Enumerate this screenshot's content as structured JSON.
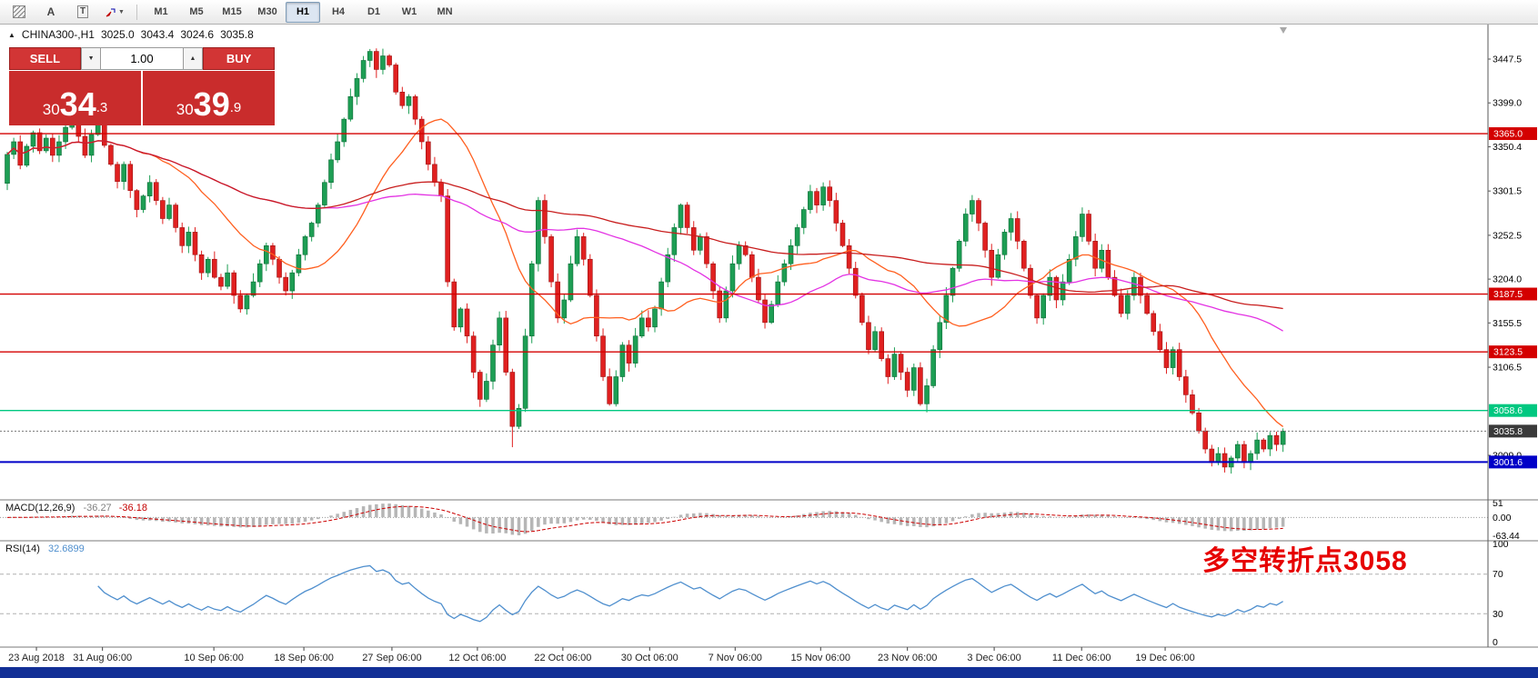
{
  "window": {
    "bottom_bar_color": "#122f96"
  },
  "toolbar": {
    "tools": [
      {
        "name": "hatch-tool"
      },
      {
        "name": "text-tool",
        "label": "A"
      },
      {
        "name": "text-label-tool",
        "label": "T"
      },
      {
        "name": "arrows-tool"
      }
    ],
    "timeframes": [
      {
        "label": "M1"
      },
      {
        "label": "M5"
      },
      {
        "label": "M15"
      },
      {
        "label": "M30"
      },
      {
        "label": "H1",
        "active": true
      },
      {
        "label": "H4"
      },
      {
        "label": "D1"
      },
      {
        "label": "W1"
      },
      {
        "label": "MN"
      }
    ]
  },
  "chart": {
    "symbol": "CHINA300-,H1",
    "open": "3025.0",
    "high": "3043.4",
    "low": "3024.6",
    "close": "3035.8"
  },
  "trade_panel": {
    "sell_label": "SELL",
    "buy_label": "BUY",
    "volume": "1.00",
    "bid": "3034.3",
    "ask": "3039.9"
  },
  "price_axis": {
    "ticks": [
      {
        "label": "3447.5",
        "value": 3447.5
      },
      {
        "label": "3399.0",
        "value": 3399.0
      },
      {
        "label": "3350.4",
        "value": 3350.4
      },
      {
        "label": "3301.5",
        "value": 3301.5
      },
      {
        "label": "3252.5",
        "value": 3252.5
      },
      {
        "label": "3204.0",
        "value": 3204.0
      },
      {
        "label": "3155.5",
        "value": 3155.5
      },
      {
        "label": "3106.5",
        "value": 3106.5
      },
      {
        "label": "3009.0",
        "value": 3009.0
      }
    ]
  },
  "levels": [
    {
      "label": "3365.0",
      "value": 3365.0,
      "color": "#d40000",
      "tag": "#d40000",
      "style": "solid",
      "width": 1.4
    },
    {
      "label": "3187.5",
      "value": 3187.5,
      "color": "#d40000",
      "tag": "#d40000",
      "style": "solid",
      "width": 1.4
    },
    {
      "label": "3123.5",
      "value": 3123.5,
      "color": "#d40000",
      "tag": "#d40000",
      "style": "solid",
      "width": 1.4
    },
    {
      "label": "3058.6",
      "value": 3058.6,
      "color": "#00c880",
      "tag": "#00c880",
      "style": "solid",
      "width": 1.4
    },
    {
      "label": "3035.8",
      "value": 3035.8,
      "color": "#777777",
      "tag": "#3a3a3a",
      "style": "dotted",
      "width": 1
    },
    {
      "label": "3001.6",
      "value": 3001.6,
      "color": "#0000c8",
      "tag": "#0000c8",
      "style": "solid",
      "width": 2
    }
  ],
  "annotation": {
    "text": "多空转折点3058",
    "color": "#e60000"
  },
  "chart_data": {
    "type": "candlestick",
    "symbol": "CHINA300-",
    "timeframe": "H1",
    "up_color": "#1d9e54",
    "down_color": "#e02020",
    "first_open": 3310,
    "closes": [
      3342,
      3356,
      3330,
      3351,
      3366,
      3346,
      3360,
      3341,
      3356,
      3372,
      3386,
      3362,
      3341,
      3364,
      3384,
      3352,
      3331,
      3312,
      3331,
      3302,
      3281,
      3296,
      3311,
      3291,
      3271,
      3286,
      3261,
      3241,
      3256,
      3231,
      3211,
      3226,
      3206,
      3196,
      3211,
      3186,
      3171,
      3186,
      3201,
      3221,
      3241,
      3226,
      3206,
      3191,
      3211,
      3231,
      3251,
      3266,
      3286,
      3311,
      3336,
      3356,
      3381,
      3406,
      3426,
      3446,
      3456,
      3436,
      3451,
      3441,
      3411,
      3396,
      3406,
      3381,
      3356,
      3331,
      3311,
      3296,
      3201,
      3151,
      3171,
      3141,
      3101,
      3071,
      3091,
      3131,
      3161,
      3101,
      3041,
      3061,
      3141,
      3221,
      3291,
      3251,
      3201,
      3161,
      3181,
      3221,
      3251,
      3226,
      3186,
      3141,
      3096,
      3066,
      3096,
      3131,
      3111,
      3141,
      3161,
      3151,
      3171,
      3201,
      3231,
      3261,
      3286,
      3261,
      3236,
      3251,
      3221,
      3191,
      3161,
      3191,
      3221,
      3241,
      3231,
      3206,
      3181,
      3156,
      3176,
      3201,
      3221,
      3241,
      3261,
      3281,
      3301,
      3286,
      3306,
      3291,
      3266,
      3241,
      3216,
      3186,
      3156,
      3126,
      3146,
      3116,
      3096,
      3121,
      3101,
      3081,
      3106,
      3066,
      3086,
      3126,
      3156,
      3186,
      3216,
      3246,
      3276,
      3291,
      3266,
      3236,
      3206,
      3231,
      3256,
      3271,
      3246,
      3216,
      3186,
      3161,
      3186,
      3206,
      3181,
      3201,
      3226,
      3251,
      3276,
      3246,
      3216,
      3236,
      3206,
      3186,
      3166,
      3186,
      3206,
      3186,
      3166,
      3146,
      3126,
      3106,
      3126,
      3096,
      3076,
      3056,
      3036,
      3016,
      3001,
      3011,
      2996,
      3006,
      3021,
      3001,
      3011,
      3026,
      3016,
      3031,
      3021,
      3035.8
    ],
    "wick_overrides": {
      "78": 3018,
      "188": 2990
    },
    "moving_averages": [
      {
        "period": 20,
        "color": "#ff5f1f"
      },
      {
        "period": 50,
        "color": "#e332e3"
      },
      {
        "period": 100,
        "color": "#c81d1d"
      }
    ],
    "macd": {
      "label": "MACD(12,26,9)",
      "value_main": "-36.27",
      "value_signal": "-36.18",
      "fast": 12,
      "slow": 26,
      "signal": 9,
      "axis_max": "51",
      "axis_zero": "0.00",
      "axis_min": "-63.44",
      "histogram_color": "#b6b6b6",
      "signal_color": "#cc0000"
    },
    "rsi": {
      "label": "RSI(14)",
      "value": "32.6899",
      "period": 14,
      "color": "#4f8fce",
      "axis": [
        "100",
        "70",
        "30",
        "0"
      ],
      "levels": [
        70,
        30
      ]
    },
    "x_labels": [
      {
        "label": "23 Aug 2018",
        "i": 4.5
      },
      {
        "label": "31 Aug 06:00",
        "i": 14.7
      },
      {
        "label": "10 Sep 06:00",
        "i": 31.9
      },
      {
        "label": "18 Sep 06:00",
        "i": 45.8
      },
      {
        "label": "27 Sep 06:00",
        "i": 59.4
      },
      {
        "label": "12 Oct 06:00",
        "i": 72.6
      },
      {
        "label": "22 Oct 06:00",
        "i": 85.8
      },
      {
        "label": "30 Oct 06:00",
        "i": 99.2
      },
      {
        "label": "7 Nov 06:00",
        "i": 112.4
      },
      {
        "label": "15 Nov 06:00",
        "i": 125.6
      },
      {
        "label": "23 Nov 06:00",
        "i": 139
      },
      {
        "label": "3 Dec 06:00",
        "i": 152.4
      },
      {
        "label": "11 Dec 06:00",
        "i": 165.9
      },
      {
        "label": "19 Dec 06:00",
        "i": 178.8
      }
    ]
  }
}
